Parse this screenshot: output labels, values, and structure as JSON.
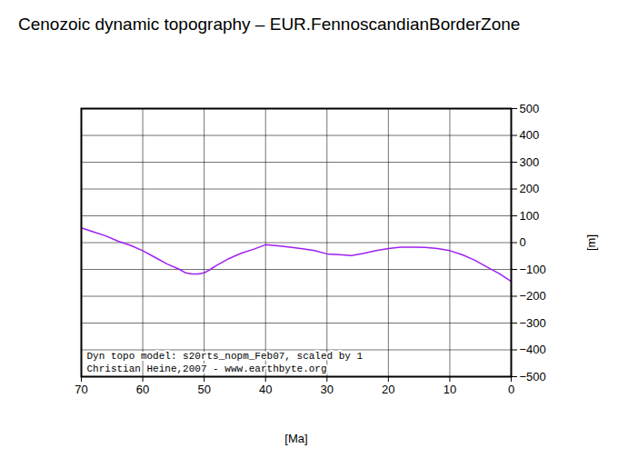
{
  "chart_data": {
    "type": "line",
    "title": "Cenozoic dynamic topography – EUR.FennoscandianBorderZone",
    "x_label": "[Ma]",
    "y_label": "[m]",
    "annotations": [
      "Dyn topo model: s20rts_nopm_Feb07, scaled by 1",
      "Christian Heine,2007 - www.earthbyte.org"
    ],
    "x": [
      70,
      68,
      66,
      64,
      62,
      60,
      58,
      56,
      54,
      53,
      52,
      51,
      50,
      49,
      48,
      46,
      44,
      42,
      40,
      38,
      36,
      34,
      32,
      30,
      28,
      26,
      24,
      22,
      20,
      18,
      16,
      14,
      12,
      10,
      8,
      6,
      4,
      2,
      0
    ],
    "series": [
      {
        "name": "dynamic topography",
        "color": "#a020f0",
        "values": [
          55,
          40,
          25,
          5,
          -10,
          -30,
          -55,
          -80,
          -100,
          -113,
          -117,
          -117,
          -113,
          -100,
          -85,
          -60,
          -40,
          -25,
          -8,
          -12,
          -17,
          -23,
          -30,
          -42,
          -45,
          -48,
          -40,
          -30,
          -22,
          -17,
          -17,
          -18,
          -22,
          -30,
          -45,
          -65,
          -90,
          -115,
          -145
        ]
      }
    ],
    "xlim": [
      70,
      0
    ],
    "xticks": [
      70,
      60,
      50,
      40,
      30,
      20,
      10,
      0
    ],
    "ylim": [
      -500,
      500
    ],
    "yticks": [
      -500,
      -400,
      -300,
      -200,
      -100,
      0,
      100,
      200,
      300,
      400,
      500
    ],
    "grid": true
  }
}
